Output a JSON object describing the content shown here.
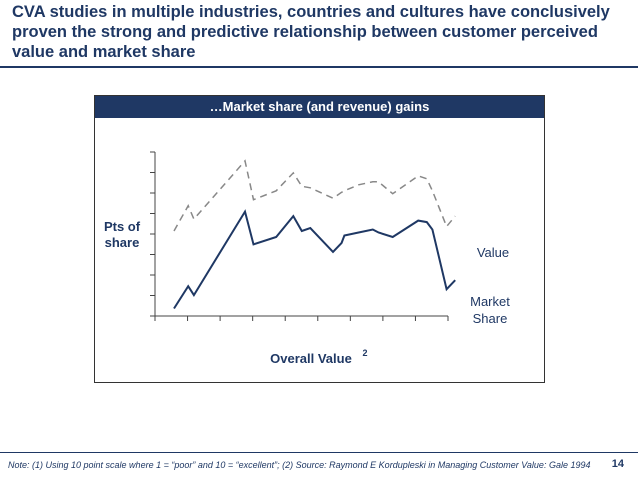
{
  "slide": {
    "title": "CVA studies in multiple industries, countries and cultures have conclusively proven the strong and predictive relationship between customer perceived value and market share",
    "page_number": "14",
    "footnote": "Note: (1) Using 10 point scale where 1 = “poor” and 10 = “excellent”; (2) Source: Raymond E Kordupleski in Managing Customer Value: Gale 1994"
  },
  "colors": {
    "navy": "#1f3864",
    "value_line": "#888888",
    "market_share_line": "#1f3864"
  },
  "chart_data": {
    "type": "line",
    "title": "…Market share (and revenue) gains",
    "xlabel": "Overall Value",
    "xlabel_superscript": "2",
    "ylabel": "Pts of share",
    "ylabel_lines": [
      "Pts of",
      "share"
    ],
    "grid": false,
    "y_tick_count": 9,
    "x_tick_count": 10,
    "x": [
      0,
      0.5,
      0.7,
      2.5,
      2.8,
      3.6,
      4.2,
      4.5,
      4.8,
      5.6,
      5.9,
      6.0,
      6.5,
      7.0,
      7.2,
      7.7,
      8.6,
      8.9,
      9.1,
      9.6,
      9.9
    ],
    "series": [
      {
        "name": "Value",
        "style": "dashed",
        "values": [
          4.7,
          6.4,
          5.5,
          9.4,
          6.8,
          7.4,
          8.6,
          7.7,
          7.6,
          6.9,
          7.3,
          7.4,
          7.8,
          8.0,
          8.0,
          7.2,
          8.4,
          8.2,
          7.4,
          5.0,
          5.7
        ]
      },
      {
        "name": "Market Share",
        "style": "solid",
        "values": [
          -0.5,
          1.0,
          0.4,
          6.0,
          3.8,
          4.3,
          5.7,
          4.7,
          4.9,
          3.3,
          3.9,
          4.4,
          4.6,
          4.8,
          4.6,
          4.3,
          5.4,
          5.3,
          4.8,
          0.8,
          1.4
        ]
      }
    ]
  }
}
